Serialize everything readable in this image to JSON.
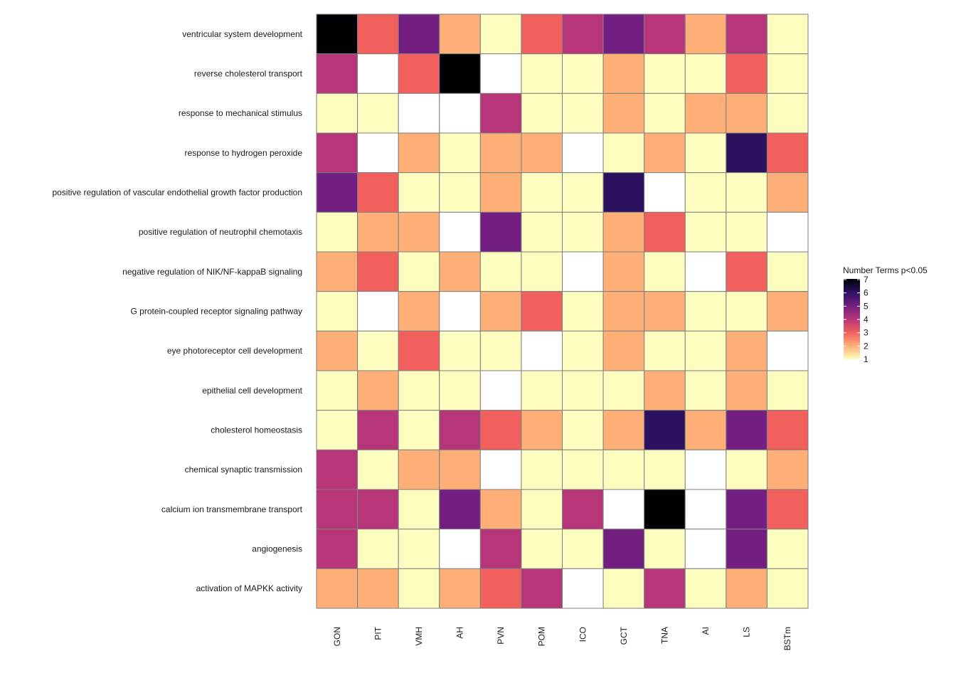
{
  "chart_data": {
    "type": "heatmap",
    "title": "",
    "xlabel": "",
    "ylabel": "",
    "columns": [
      "GON",
      "PIT",
      "VMH",
      "AH",
      "PVN",
      "POM",
      "ICO",
      "GCT",
      "TNA",
      "AI",
      "LS",
      "BSTm"
    ],
    "rows": [
      "ventricular system development",
      "reverse cholesterol transport",
      "response to mechanical stimulus",
      "response to hydrogen peroxide",
      "positive regulation of vascular endothelial growth factor production",
      "positive regulation of neutrophil chemotaxis",
      "negative regulation of NIK/NF-kappaB signaling",
      "G protein-coupled receptor signaling pathway",
      "eye photoreceptor cell development",
      "epithelial cell development",
      "cholesterol homeostasis",
      "chemical synaptic transmission",
      "calcium ion transmembrane transport",
      "angiogenesis",
      "activation of MAPKK activity"
    ],
    "values": [
      [
        7,
        3,
        5,
        2,
        1,
        3,
        4,
        5,
        4,
        2,
        4,
        1
      ],
      [
        4,
        null,
        3,
        7,
        null,
        1,
        1,
        2,
        1,
        1,
        3,
        1
      ],
      [
        1,
        1,
        null,
        null,
        4,
        1,
        1,
        2,
        1,
        2,
        2,
        1
      ],
      [
        4,
        null,
        2,
        1,
        2,
        2,
        null,
        1,
        2,
        1,
        6,
        3
      ],
      [
        5,
        3,
        1,
        1,
        2,
        1,
        1,
        6,
        null,
        1,
        1,
        2
      ],
      [
        1,
        2,
        2,
        null,
        5,
        1,
        1,
        2,
        3,
        1,
        1,
        null
      ],
      [
        2,
        3,
        1,
        2,
        1,
        1,
        null,
        2,
        1,
        null,
        3,
        1
      ],
      [
        1,
        null,
        2,
        null,
        2,
        3,
        1,
        2,
        2,
        1,
        1,
        2
      ],
      [
        2,
        1,
        3,
        1,
        1,
        null,
        1,
        2,
        1,
        1,
        2,
        null
      ],
      [
        1,
        2,
        1,
        1,
        null,
        1,
        1,
        1,
        2,
        1,
        2,
        1
      ],
      [
        1,
        4,
        1,
        4,
        3,
        2,
        1,
        2,
        6,
        2,
        5,
        3
      ],
      [
        4,
        1,
        2,
        2,
        null,
        1,
        1,
        1,
        1,
        null,
        1,
        2
      ],
      [
        4,
        4,
        1,
        5,
        2,
        1,
        4,
        null,
        7,
        null,
        5,
        3
      ],
      [
        4,
        1,
        1,
        null,
        4,
        1,
        1,
        5,
        1,
        null,
        5,
        1
      ],
      [
        2,
        2,
        1,
        2,
        3,
        4,
        null,
        1,
        4,
        1,
        2,
        1
      ]
    ],
    "legend": {
      "title": "Number Terms p<0.05",
      "ticks": [
        7,
        6,
        5,
        4,
        3,
        2,
        1
      ],
      "range": [
        1,
        7
      ],
      "placement": "right",
      "palette": [
        "#fcfdbf",
        "#feaf77",
        "#f1605d",
        "#b63679",
        "#721f81",
        "#2c115f",
        "#000004"
      ]
    },
    "missing_color": "#ffffff",
    "tile_border_color": "#7f7f7f"
  }
}
